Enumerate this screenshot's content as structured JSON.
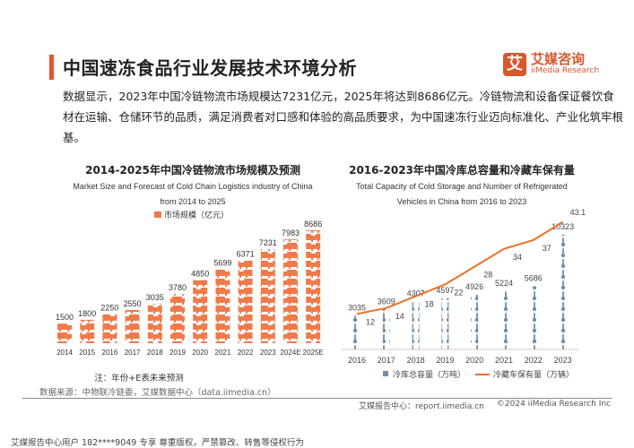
{
  "header": {
    "title": "中国速冻食品行业发展技术环境分析",
    "logo_mark": "艾",
    "logo_cn": "艾媒咨询",
    "logo_en": "iiMedia Research"
  },
  "intro": "数据显示，2023年中国冷链物流市场规模达7231亿元，2025年将达到8686亿元。冷链物流和设备保证餐饮食材在运输、仓储环节的品质，满足消费者对口感和体验的高品质要求，为中国速冻行业迈向标准化、产业化筑牢根基。",
  "chart_data": [
    {
      "type": "bar",
      "title": "2014-2025年中国冷链物流市场规模及预测",
      "subtitle_1": "Market Size and Forecast of Cold Chain Logistics industry of China",
      "subtitle_2": "from 2014 to 2025",
      "legend": "市场规模（亿元）",
      "categories": [
        "2014",
        "2015",
        "2016",
        "2017",
        "2018",
        "2019",
        "2020",
        "2021",
        "2022",
        "2023",
        "2024E",
        "2025E"
      ],
      "values": [
        1500,
        1800,
        2250,
        2550,
        3035,
        3780,
        4850,
        5699,
        6371,
        7231,
        7983,
        8686
      ],
      "color": "#f07a4a",
      "note": "注：年份+E表未来预测"
    },
    {
      "type": "bar+line",
      "title": "2016-2023年中国冷库总容量和冷藏车保有量",
      "subtitle_1": "Total Capacity of Cold Storage and Number of Refrigerated",
      "subtitle_2": "Vehicles in China from 2016 to 2023",
      "categories": [
        "2016",
        "2017",
        "2018",
        "2019",
        "2020",
        "2021",
        "2022",
        "2023"
      ],
      "series": [
        {
          "name": "冷库总容量（万吨）",
          "type": "bar",
          "values": [
            3035,
            3609,
            4307,
            4597,
            4926,
            5224,
            5686,
            10323
          ],
          "color": "#6f8fa8"
        },
        {
          "name": "冷藏车保有量（万辆）",
          "type": "line",
          "values": [
            12,
            14,
            18,
            22,
            28,
            34,
            37,
            43.1
          ],
          "color": "#ec7125"
        }
      ]
    }
  ],
  "source": "数据来源：中物联冷链委，艾媒数据中心（data.iimedia.cn）",
  "footer": {
    "report": "艾媒报告中心：report.iimedia.cn",
    "copyright": "©2024  iiMedia Research  Inc"
  },
  "bottom": "艾媒报告中心用户 182****9049 专享 尊重版权，严禁篡改、转售等侵权行为"
}
